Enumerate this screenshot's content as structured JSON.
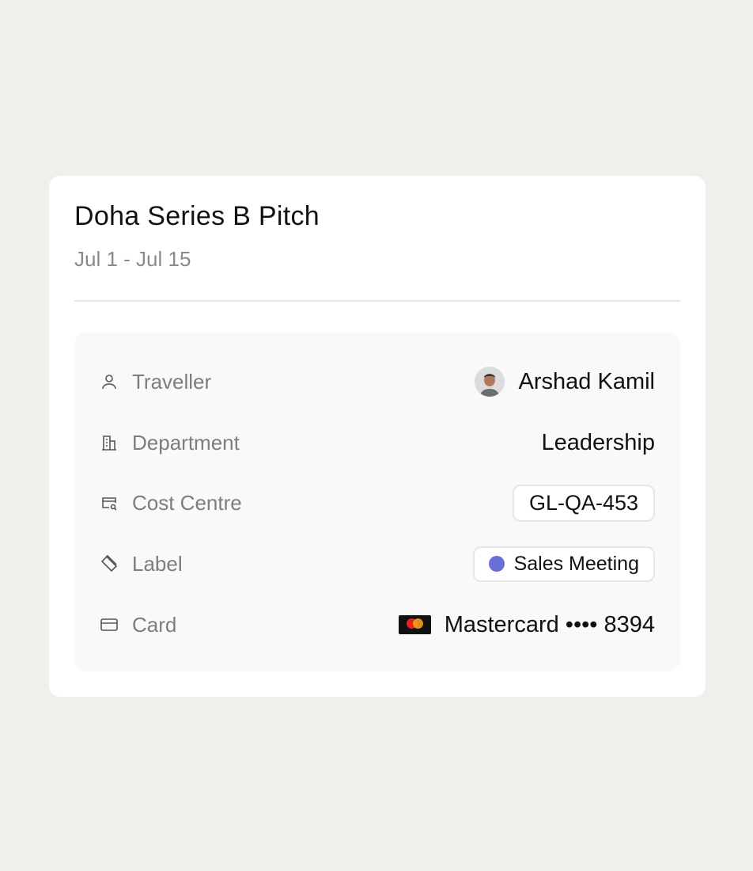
{
  "trip": {
    "title": "Doha Series B Pitch",
    "dates": "Jul 1 - Jul 15"
  },
  "details": [
    {
      "icon": "person-icon",
      "label": "Traveller",
      "value": "Arshad Kamil"
    },
    {
      "icon": "building-icon",
      "label": "Department",
      "value": "Leadership"
    },
    {
      "icon": "cost-centre-icon",
      "label": "Cost Centre",
      "value": "GL-QA-453"
    },
    {
      "icon": "tag-icon",
      "label": "Label",
      "value": "Sales Meeting",
      "color": "#6a6fd6"
    },
    {
      "icon": "credit-card-icon",
      "label": "Card",
      "value": "Mastercard •••• 8394"
    }
  ]
}
